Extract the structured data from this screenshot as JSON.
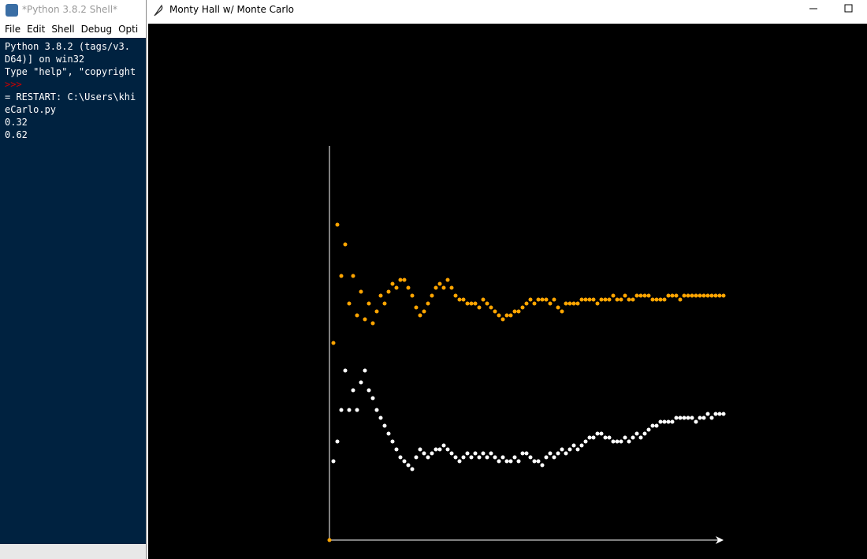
{
  "shell": {
    "title": "*Python 3.8.2 Shell*",
    "menu": [
      "File",
      "Edit",
      "Shell",
      "Debug",
      "Opti"
    ],
    "lines": [
      "Python 3.8.2 (tags/v3.",
      "D64)] on win32",
      "Type \"help\", \"copyright",
      ">>>",
      "= RESTART: C:\\Users\\khi",
      "eCarlo.py",
      "0.32",
      "0.62"
    ]
  },
  "turtle_window": {
    "title": "Monty Hall w/ Monte Carlo"
  },
  "chart_data": {
    "type": "scatter",
    "xlim": [
      0,
      100
    ],
    "ylim": [
      0,
      1
    ],
    "series": [
      {
        "color": "#ffa500",
        "values": [
          0.5,
          0.8,
          0.67,
          0.75,
          0.6,
          0.67,
          0.57,
          0.63,
          0.56,
          0.6,
          0.55,
          0.58,
          0.62,
          0.6,
          0.63,
          0.65,
          0.64,
          0.66,
          0.66,
          0.64,
          0.62,
          0.59,
          0.57,
          0.58,
          0.6,
          0.62,
          0.64,
          0.65,
          0.64,
          0.66,
          0.64,
          0.62,
          0.61,
          0.61,
          0.6,
          0.6,
          0.6,
          0.59,
          0.61,
          0.6,
          0.59,
          0.58,
          0.57,
          0.56,
          0.57,
          0.57,
          0.58,
          0.58,
          0.59,
          0.6,
          0.61,
          0.6,
          0.61,
          0.61,
          0.61,
          0.6,
          0.61,
          0.59,
          0.58,
          0.6,
          0.6,
          0.6,
          0.6,
          0.61,
          0.61,
          0.61,
          0.61,
          0.6,
          0.61,
          0.61,
          0.61,
          0.62,
          0.61,
          0.61,
          0.62,
          0.61,
          0.61,
          0.62,
          0.62,
          0.62,
          0.62,
          0.61,
          0.61,
          0.61,
          0.61,
          0.62,
          0.62,
          0.62,
          0.61,
          0.62,
          0.62,
          0.62,
          0.62,
          0.62,
          0.62,
          0.62,
          0.62,
          0.62,
          0.62,
          0.62
        ]
      },
      {
        "color": "#ffffff",
        "values": [
          0.2,
          0.25,
          0.33,
          0.43,
          0.33,
          0.38,
          0.33,
          0.4,
          0.43,
          0.38,
          0.36,
          0.33,
          0.31,
          0.29,
          0.27,
          0.25,
          0.23,
          0.21,
          0.2,
          0.19,
          0.18,
          0.21,
          0.23,
          0.22,
          0.21,
          0.22,
          0.23,
          0.23,
          0.24,
          0.23,
          0.22,
          0.21,
          0.2,
          0.21,
          0.22,
          0.21,
          0.22,
          0.21,
          0.22,
          0.21,
          0.22,
          0.21,
          0.2,
          0.21,
          0.2,
          0.2,
          0.21,
          0.2,
          0.22,
          0.22,
          0.21,
          0.2,
          0.2,
          0.19,
          0.21,
          0.22,
          0.21,
          0.22,
          0.23,
          0.22,
          0.23,
          0.24,
          0.23,
          0.24,
          0.25,
          0.26,
          0.26,
          0.27,
          0.27,
          0.26,
          0.26,
          0.25,
          0.25,
          0.25,
          0.26,
          0.25,
          0.26,
          0.27,
          0.26,
          0.27,
          0.28,
          0.29,
          0.29,
          0.3,
          0.3,
          0.3,
          0.3,
          0.31,
          0.31,
          0.31,
          0.31,
          0.31,
          0.3,
          0.31,
          0.31,
          0.32,
          0.31,
          0.32,
          0.32,
          0.32
        ]
      }
    ]
  }
}
